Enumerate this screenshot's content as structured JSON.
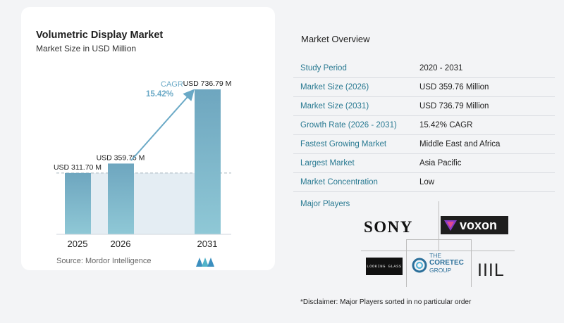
{
  "chart": {
    "title": "Volumetric Display Market",
    "subtitle": "Market Size in USD Million",
    "source": "Source:  Mordor Intelligence",
    "cagr_label": "CAGR",
    "cagr_value": "15.42%"
  },
  "chart_data": {
    "type": "bar",
    "categories": [
      "2025",
      "2026",
      "2031"
    ],
    "values": [
      311.7,
      359.76,
      736.79
    ],
    "data_labels": [
      "USD 311.70 M",
      "USD 359.76 M",
      "USD 736.79 M"
    ],
    "title": "Volumetric Display Market",
    "subtitle": "Market Size in USD Million",
    "xlabel": "",
    "ylabel": "",
    "grid": false,
    "colors": {
      "bar_top": "#6ea6bf",
      "bar_bottom": "#8fc8d6",
      "baseline_band": "#e4edf3",
      "arrow": "#6aa9c6"
    }
  },
  "overview": {
    "title": "Market Overview",
    "rows": [
      {
        "label": "Study Period",
        "value": "2020 - 2031"
      },
      {
        "label": "Market Size (2026)",
        "value": "USD 359.76 Million"
      },
      {
        "label": "Market Size (2031)",
        "value": "USD 736.79 Million"
      },
      {
        "label": "Growth Rate (2026 - 2031)",
        "value": "15.42% CAGR"
      },
      {
        "label": "Fastest Growing Market",
        "value": "Middle East and Africa"
      },
      {
        "label": "Largest Market",
        "value": "Asia Pacific"
      },
      {
        "label": "Market Concentration",
        "value": "Low"
      }
    ],
    "players_title": "Major Players",
    "disclaimer": "*Disclaimer: Major Players sorted in no particular order"
  },
  "players": {
    "sony": "SONY",
    "voxon": "voxon",
    "looking_glass": "LOOKING GLASS",
    "coretec_line1": "THE",
    "coretec_line2": "CORETEC",
    "coretec_line3": "GROUP",
    "iiil": "IIIL"
  }
}
